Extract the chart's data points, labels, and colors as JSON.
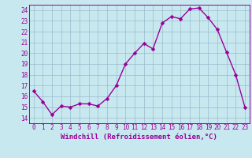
{
  "x": [
    0,
    1,
    2,
    3,
    4,
    5,
    6,
    7,
    8,
    9,
    10,
    11,
    12,
    13,
    14,
    15,
    16,
    17,
    18,
    19,
    20,
    21,
    22,
    23
  ],
  "y": [
    16.5,
    15.5,
    14.3,
    15.1,
    15.0,
    15.3,
    15.3,
    15.1,
    15.8,
    17.0,
    19.0,
    20.0,
    20.9,
    20.4,
    22.8,
    23.4,
    23.2,
    24.1,
    24.2,
    23.3,
    22.2,
    20.1,
    18.0,
    15.0
  ],
  "line_color": "#990099",
  "marker_color": "#990099",
  "bg_color": "#c8e8f0",
  "grid_color": "#99bbcc",
  "xlabel": "Windchill (Refroidissement éolien,°C)",
  "xlim": [
    -0.5,
    23.5
  ],
  "ylim": [
    13.5,
    24.5
  ],
  "yticks": [
    14,
    15,
    16,
    17,
    18,
    19,
    20,
    21,
    22,
    23,
    24
  ],
  "xticks": [
    0,
    1,
    2,
    3,
    4,
    5,
    6,
    7,
    8,
    9,
    10,
    11,
    12,
    13,
    14,
    15,
    16,
    17,
    18,
    19,
    20,
    21,
    22,
    23
  ],
  "tick_fontsize": 5.5,
  "xlabel_fontsize": 6.5,
  "line_width": 1.0,
  "marker_size": 2.5
}
